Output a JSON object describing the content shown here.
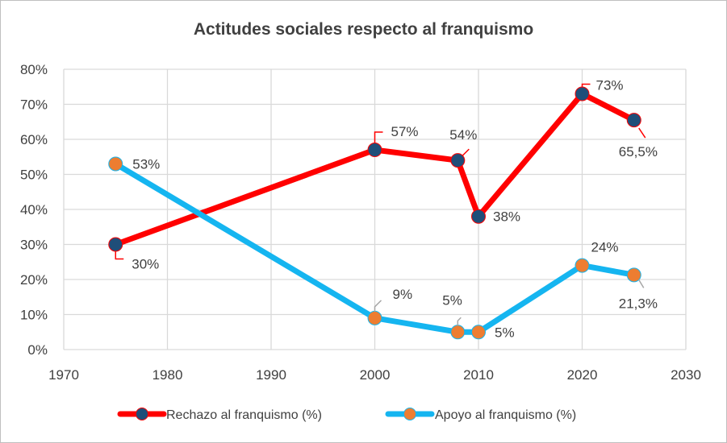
{
  "chart_data": {
    "type": "line",
    "title": "Actitudes sociales respecto al franquismo",
    "xlim": [
      1970,
      2030
    ],
    "ylim": [
      0,
      80
    ],
    "x_ticks": [
      "1970",
      "1980",
      "1990",
      "2000",
      "2010",
      "2020",
      "2030"
    ],
    "y_ticks": [
      "0%",
      "10%",
      "20%",
      "30%",
      "40%",
      "50%",
      "60%",
      "70%",
      "80%"
    ],
    "grid": true,
    "legend_position": "bottom",
    "series": [
      {
        "name": "Rechazo al franquismo (%)",
        "line_color": "#ff0000",
        "marker_color": "#1f4e79",
        "points": [
          {
            "x": 1975,
            "y": 30,
            "label": "30%"
          },
          {
            "x": 2000,
            "y": 57,
            "label": "57%"
          },
          {
            "x": 2008,
            "y": 54,
            "label": "54%"
          },
          {
            "x": 2010,
            "y": 38,
            "label": "38%"
          },
          {
            "x": 2020,
            "y": 73,
            "label": "73%"
          },
          {
            "x": 2025,
            "y": 65.5,
            "label": "65,5%"
          }
        ]
      },
      {
        "name": "Apoyo al franquismo (%)",
        "line_color": "#15b5f0",
        "marker_color": "#ed7d31",
        "points": [
          {
            "x": 1975,
            "y": 53,
            "label": "53%"
          },
          {
            "x": 2000,
            "y": 9,
            "label": "9%"
          },
          {
            "x": 2008,
            "y": 5,
            "label": "5%"
          },
          {
            "x": 2010,
            "y": 5,
            "label": "5%"
          },
          {
            "x": 2020,
            "y": 24,
            "label": "24%"
          },
          {
            "x": 2025,
            "y": 21.3,
            "label": "21,3%"
          }
        ]
      }
    ]
  }
}
